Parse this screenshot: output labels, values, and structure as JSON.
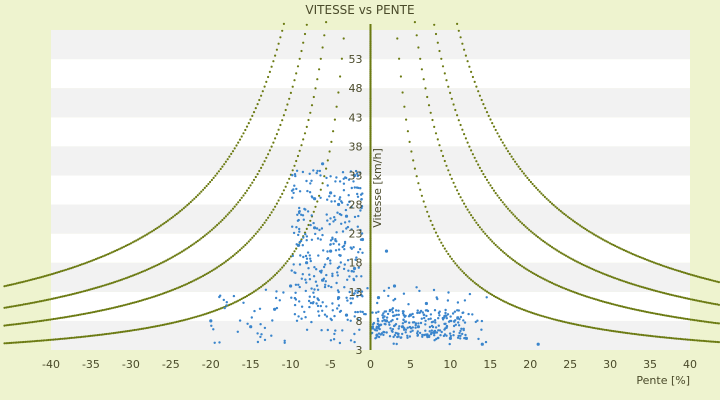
{
  "chart_data": {
    "type": "scatter",
    "title": "VITESSE vs PENTE",
    "xlabel": "Pente [%]",
    "ylabel": "Vitesse [km/h]",
    "xlim": [
      -40,
      40
    ],
    "ylim": [
      3,
      58
    ],
    "x_ticks": [
      -40,
      -35,
      -30,
      -25,
      -20,
      -15,
      -10,
      -5,
      0,
      5,
      10,
      15,
      20,
      25,
      30,
      35,
      40
    ],
    "y_ticks": [
      3,
      8,
      13,
      18,
      23,
      28,
      33,
      38,
      43,
      48,
      53
    ],
    "y_tick_labels": [
      "3",
      "8",
      "13",
      "18",
      "23",
      "28",
      "33",
      "38",
      "43",
      "48",
      "53"
    ],
    "grid": "alternating horizontal bands",
    "legend": "none",
    "colors": {
      "page_background": "#eef3cf",
      "band_light": "#ffffff",
      "band_dark": "#f2f2f2",
      "measured_points": "#3a85cc",
      "limit_curves": "#6b7a12",
      "axis_line": "#6b7a12"
    },
    "series": [
      {
        "style": "dotted-curves",
        "curves": [
          {
            "k": 190
          },
          {
            "k": 330
          },
          {
            "k": 470
          },
          {
            "k": 640
          }
        ]
      },
      {
        "style": "scatter",
        "cluster_points": [
          {
            "x": -6,
            "y": 35
          },
          {
            "x": -5,
            "y": 30
          },
          {
            "x": -4,
            "y": 28
          },
          {
            "x": -7,
            "y": 24
          },
          {
            "x": -3,
            "y": 26
          },
          {
            "x": -5,
            "y": 20
          },
          {
            "x": -8,
            "y": 18
          },
          {
            "x": -2,
            "y": 17
          },
          {
            "x": -10,
            "y": 14
          },
          {
            "x": -12,
            "y": 10
          },
          {
            "x": -4,
            "y": 12
          },
          {
            "x": -6,
            "y": 15
          },
          {
            "x": -1,
            "y": 22
          },
          {
            "x": -9,
            "y": 21
          },
          {
            "x": -15,
            "y": 7
          },
          {
            "x": -20,
            "y": 8
          },
          {
            "x": -3,
            "y": 9
          },
          {
            "x": 2,
            "y": 8
          },
          {
            "x": 4,
            "y": 7
          },
          {
            "x": 6,
            "y": 7
          },
          {
            "x": 8,
            "y": 6
          },
          {
            "x": 10,
            "y": 5
          },
          {
            "x": 12,
            "y": 5
          },
          {
            "x": 3,
            "y": 14
          },
          {
            "x": 1,
            "y": 12
          },
          {
            "x": 5,
            "y": 9
          },
          {
            "x": 14,
            "y": 4
          },
          {
            "x": 21,
            "y": 4
          },
          {
            "x": -2,
            "y": 33
          },
          {
            "x": -7,
            "y": 29
          },
          {
            "x": 7,
            "y": 11
          },
          {
            "x": 2,
            "y": 20
          }
        ]
      }
    ]
  }
}
